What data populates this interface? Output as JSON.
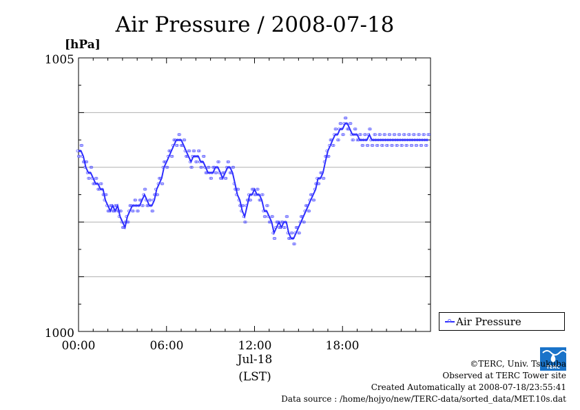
{
  "chart_data": {
    "type": "line",
    "title": "Air Pressure / 2008-07-18",
    "ylabel": "[hPa]",
    "ylim": [
      1000,
      1005
    ],
    "y_ticks": [
      "1005",
      "1000"
    ],
    "y_gridlines": [
      1001,
      1002,
      1003,
      1004
    ],
    "xlim_hours": [
      0,
      23.83
    ],
    "x_ticks": [
      "00:00",
      "06:00",
      "12:00",
      "18:00"
    ],
    "x_date_label": "Jul-18",
    "x_unit_label": "(LST)",
    "legend_position": "bottom-right",
    "series": [
      {
        "name": "Air Pressure",
        "color": "#2c2cff",
        "marker_color": "#6a6aff",
        "x_hours": [
          0,
          0.17,
          0.33,
          0.5,
          0.67,
          0.83,
          1.0,
          1.17,
          1.33,
          1.5,
          1.67,
          1.83,
          2.0,
          2.17,
          2.33,
          2.5,
          2.67,
          2.83,
          3.0,
          3.17,
          3.33,
          3.5,
          3.67,
          3.83,
          4.0,
          4.17,
          4.33,
          4.5,
          4.67,
          4.83,
          5.0,
          5.17,
          5.33,
          5.5,
          5.67,
          5.83,
          6.0,
          6.17,
          6.33,
          6.5,
          6.67,
          6.83,
          7.0,
          7.17,
          7.33,
          7.5,
          7.67,
          7.83,
          8.0,
          8.17,
          8.33,
          8.5,
          8.67,
          8.83,
          9.0,
          9.17,
          9.33,
          9.5,
          9.67,
          9.83,
          10.0,
          10.17,
          10.33,
          10.5,
          10.67,
          10.83,
          11.0,
          11.17,
          11.33,
          11.5,
          11.67,
          11.83,
          12.0,
          12.17,
          12.33,
          12.5,
          12.67,
          12.83,
          13.0,
          13.17,
          13.33,
          13.5,
          13.67,
          13.83,
          14.0,
          14.17,
          14.33,
          14.5,
          14.67,
          14.83,
          15.0,
          15.17,
          15.33,
          15.5,
          15.67,
          15.83,
          16.0,
          16.17,
          16.33,
          16.5,
          16.67,
          16.83,
          17.0,
          17.17,
          17.33,
          17.5,
          17.67,
          17.83,
          18.0,
          18.17,
          18.33,
          18.5,
          18.67,
          18.83,
          19.0,
          19.17,
          19.33,
          19.5,
          19.67,
          19.83,
          20.0,
          20.17,
          20.33,
          20.5,
          20.67,
          20.83,
          21.0,
          21.17,
          21.33,
          21.5,
          21.67,
          21.83,
          22.0,
          22.17,
          22.33,
          22.5,
          22.67,
          22.83,
          23.0,
          23.17,
          23.33,
          23.5,
          23.67,
          23.83
        ],
        "values": [
          1003.3,
          1003.3,
          1003.2,
          1003.0,
          1002.9,
          1002.9,
          1002.8,
          1002.7,
          1002.7,
          1002.6,
          1002.6,
          1002.4,
          1002.3,
          1002.2,
          1002.3,
          1002.2,
          1002.3,
          1002.1,
          1002.0,
          1001.9,
          1002.1,
          1002.2,
          1002.3,
          1002.3,
          1002.3,
          1002.3,
          1002.4,
          1002.5,
          1002.4,
          1002.3,
          1002.3,
          1002.4,
          1002.6,
          1002.7,
          1002.8,
          1003.0,
          1003.1,
          1003.2,
          1003.3,
          1003.4,
          1003.5,
          1003.5,
          1003.5,
          1003.4,
          1003.3,
          1003.2,
          1003.1,
          1003.2,
          1003.2,
          1003.2,
          1003.1,
          1003.1,
          1003.0,
          1002.9,
          1002.9,
          1002.9,
          1003.0,
          1003.0,
          1002.9,
          1002.8,
          1002.9,
          1003.0,
          1003.0,
          1002.9,
          1002.7,
          1002.5,
          1002.4,
          1002.2,
          1002.1,
          1002.3,
          1002.5,
          1002.5,
          1002.6,
          1002.5,
          1002.5,
          1002.4,
          1002.2,
          1002.2,
          1002.1,
          1002.0,
          1001.8,
          1001.9,
          1002.0,
          1001.9,
          1002.0,
          1002.0,
          1001.8,
          1001.7,
          1001.7,
          1001.8,
          1001.9,
          1002.0,
          1002.1,
          1002.2,
          1002.3,
          1002.4,
          1002.5,
          1002.6,
          1002.8,
          1002.8,
          1002.9,
          1003.1,
          1003.3,
          1003.4,
          1003.5,
          1003.6,
          1003.6,
          1003.7,
          1003.7,
          1003.8,
          1003.8,
          1003.7,
          1003.6,
          1003.6,
          1003.6,
          1003.5,
          1003.5,
          1003.5,
          1003.5,
          1003.6,
          1003.5,
          1003.5,
          1003.5,
          1003.5,
          1003.5,
          1003.5,
          1003.5,
          1003.5,
          1003.5,
          1003.5,
          1003.5,
          1003.5,
          1003.5,
          1003.5,
          1003.5,
          1003.5,
          1003.5,
          1003.5,
          1003.5,
          1003.5,
          1003.5,
          1003.5,
          1003.5,
          1003.5
        ]
      }
    ]
  },
  "legend": {
    "label": "Air Pressure"
  },
  "credits": {
    "copyright": "©TERC, Univ. Tsukuba",
    "site": "Observed at TERC Tower site",
    "created": "Created Automatically at 2008-07-18/23:55:41",
    "source": "Data source : /home/hojyo/new/TERC-data/sorted_data/MET.10s.dat"
  },
  "logo": {
    "text": "TERC",
    "color": "#1a73c9"
  }
}
